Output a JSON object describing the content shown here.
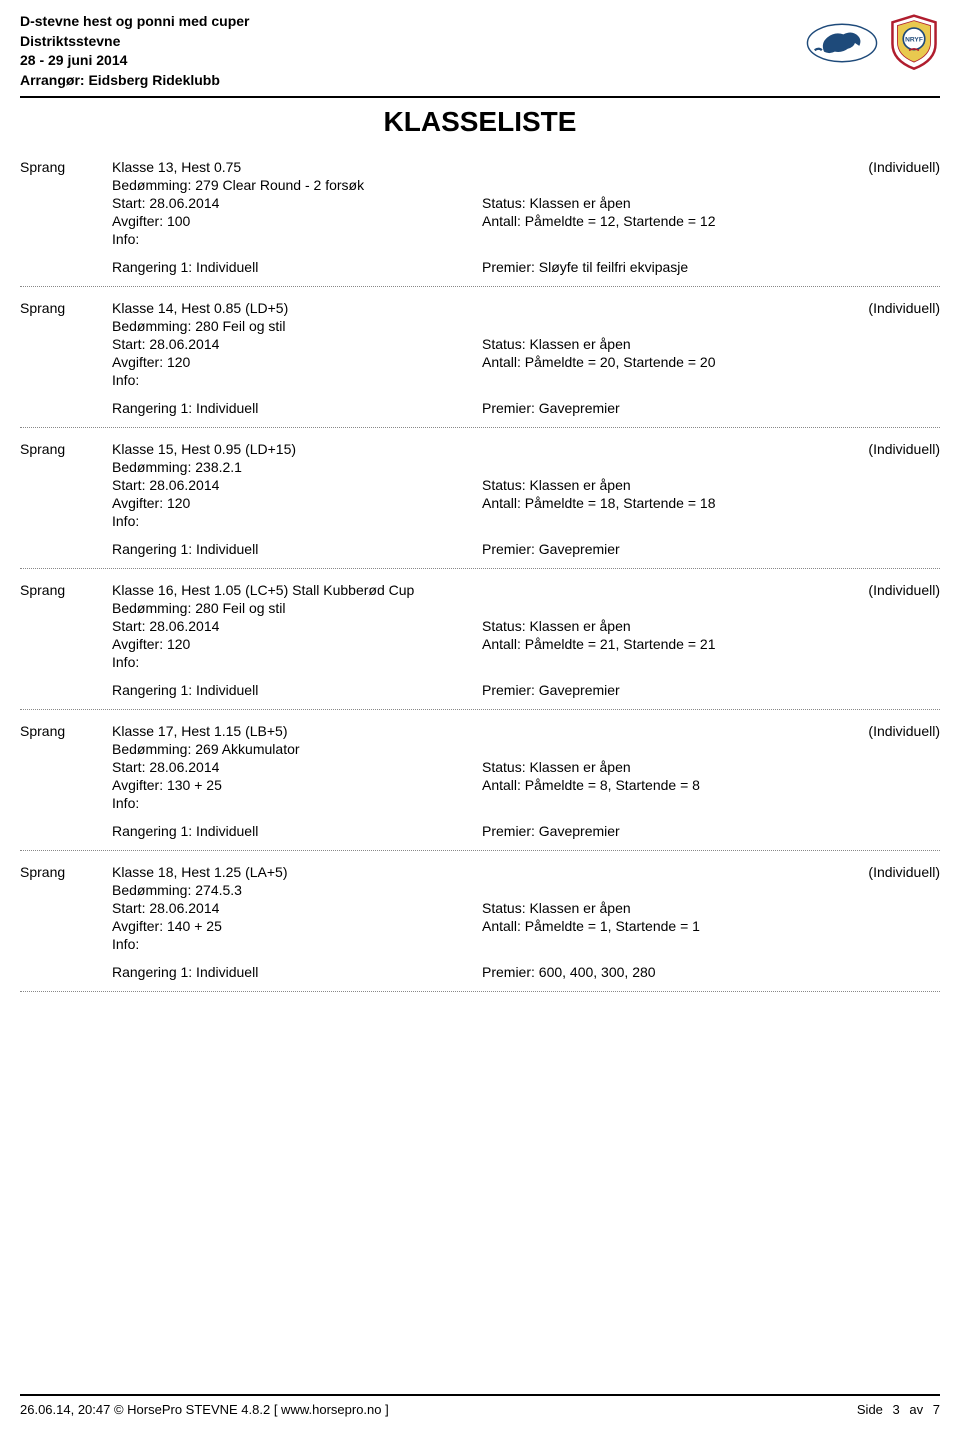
{
  "header": {
    "line1": "D-stevne hest og ponni med cuper",
    "line2": "Distriktsstevne",
    "line3": "28 - 29 juni 2014",
    "line4": "Arrangør: Eidsberg Rideklubb"
  },
  "title": "KLASSELISTE",
  "entries": [
    {
      "discipline": "Sprang",
      "class_name": "Klasse 13, Hest 0.75",
      "individuell": "(Individuell)",
      "judging": "Bedømming: 279 Clear Round - 2 forsøk",
      "start": "Start: 28.06.2014",
      "status": "Status: Klassen er åpen",
      "fees": "Avgifter: 100",
      "count": "Antall: Påmeldte = 12, Startende = 12",
      "info": "Info:",
      "ranking": "Rangering 1: Individuell",
      "premier": "Premier: Sløyfe til feilfri ekvipasje"
    },
    {
      "discipline": "Sprang",
      "class_name": "Klasse 14, Hest 0.85 (LD+5)",
      "individuell": "(Individuell)",
      "judging": "Bedømming: 280 Feil og stil",
      "start": "Start: 28.06.2014",
      "status": "Status: Klassen er åpen",
      "fees": "Avgifter: 120",
      "count": "Antall: Påmeldte = 20, Startende = 20",
      "info": "Info:",
      "ranking": "Rangering 1: Individuell",
      "premier": "Premier: Gavepremier"
    },
    {
      "discipline": "Sprang",
      "class_name": "Klasse 15, Hest 0.95 (LD+15)",
      "individuell": "(Individuell)",
      "judging": "Bedømming: 238.2.1",
      "start": "Start: 28.06.2014",
      "status": "Status: Klassen er åpen",
      "fees": "Avgifter: 120",
      "count": "Antall: Påmeldte = 18, Startende = 18",
      "info": "Info:",
      "ranking": "Rangering 1: Individuell",
      "premier": "Premier: Gavepremier"
    },
    {
      "discipline": "Sprang",
      "class_name": "Klasse 16, Hest 1.05 (LC+5) Stall Kubberød Cup",
      "individuell": "(Individuell)",
      "judging": "Bedømming: 280 Feil og stil",
      "start": "Start: 28.06.2014",
      "status": "Status: Klassen er åpen",
      "fees": "Avgifter: 120",
      "count": "Antall: Påmeldte = 21, Startende = 21",
      "info": "Info:",
      "ranking": "Rangering 1: Individuell",
      "premier": "Premier: Gavepremier"
    },
    {
      "discipline": "Sprang",
      "class_name": "Klasse 17, Hest 1.15 (LB+5)",
      "individuell": "(Individuell)",
      "judging": "Bedømming: 269 Akkumulator",
      "start": "Start: 28.06.2014",
      "status": "Status: Klassen er åpen",
      "fees": "Avgifter: 130 + 25",
      "count": "Antall: Påmeldte = 8, Startende = 8",
      "info": "Info:",
      "ranking": "Rangering 1: Individuell",
      "premier": "Premier: Gavepremier"
    },
    {
      "discipline": "Sprang",
      "class_name": "Klasse 18, Hest 1.25 (LA+5)",
      "individuell": "(Individuell)",
      "judging": "Bedømming: 274.5.3",
      "start": "Start: 28.06.2014",
      "status": "Status: Klassen er åpen",
      "fees": "Avgifter: 140 + 25",
      "count": "Antall: Påmeldte = 1, Startende = 1",
      "info": "Info:",
      "ranking": "Rangering 1: Individuell",
      "premier": "Premier: 600, 400, 300, 280"
    }
  ],
  "footer": {
    "left": "26.06.14, 20:47 © HorsePro STEVNE 4.8.2 [ www.horsepro.no ]",
    "side_label": "Side",
    "page": "3",
    "av_label": "av",
    "total": "7"
  }
}
